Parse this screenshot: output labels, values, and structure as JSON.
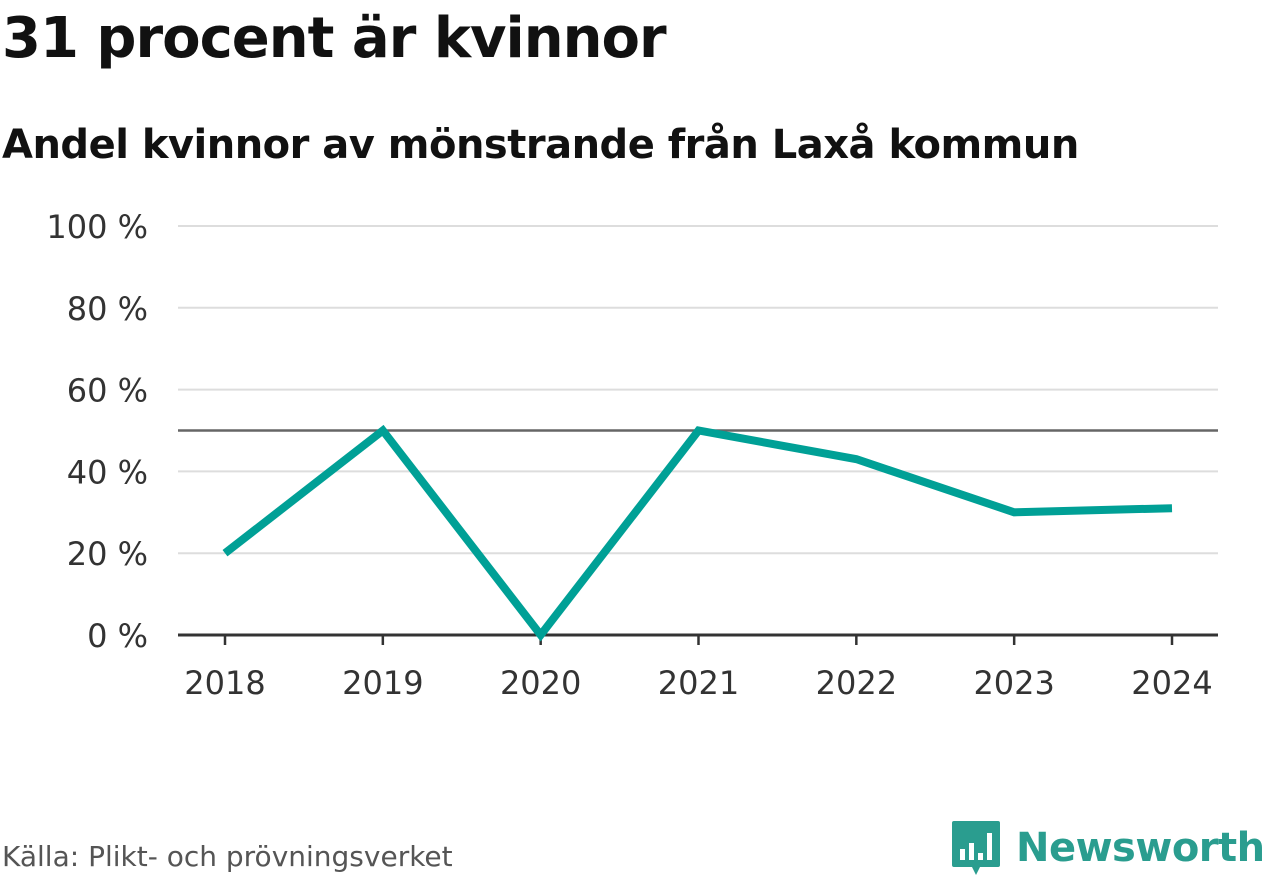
{
  "title": "31 procent är kvinnor",
  "subtitle": "Andel kvinnor av mönstrande från Laxå kommun",
  "source": "Källa: Plikt- och prövningsverket",
  "brand": {
    "name": "Newsworthy",
    "icon": "newsworthy-logo-icon",
    "color": "#2a9d8f"
  },
  "colors": {
    "line": "#00a096",
    "grid": "#dddddd",
    "reference": "#666666",
    "axis": "#333333"
  },
  "chart_data": {
    "type": "line",
    "title": "31 procent är kvinnor",
    "subtitle": "Andel kvinnor av mönstrande från Laxå kommun",
    "xlabel": "",
    "ylabel": "",
    "categories": [
      "2018",
      "2019",
      "2020",
      "2021",
      "2022",
      "2023",
      "2024"
    ],
    "series": [
      {
        "name": "Andel kvinnor",
        "values": [
          20,
          50,
          0,
          50,
          43,
          30,
          31
        ]
      }
    ],
    "ylim": [
      0,
      100
    ],
    "yticks": [
      0,
      20,
      40,
      60,
      80,
      100
    ],
    "ytick_labels": [
      "0 %",
      "20 %",
      "40 %",
      "60 %",
      "80 %",
      "100 %"
    ],
    "reference_line": 50,
    "grid": true
  }
}
